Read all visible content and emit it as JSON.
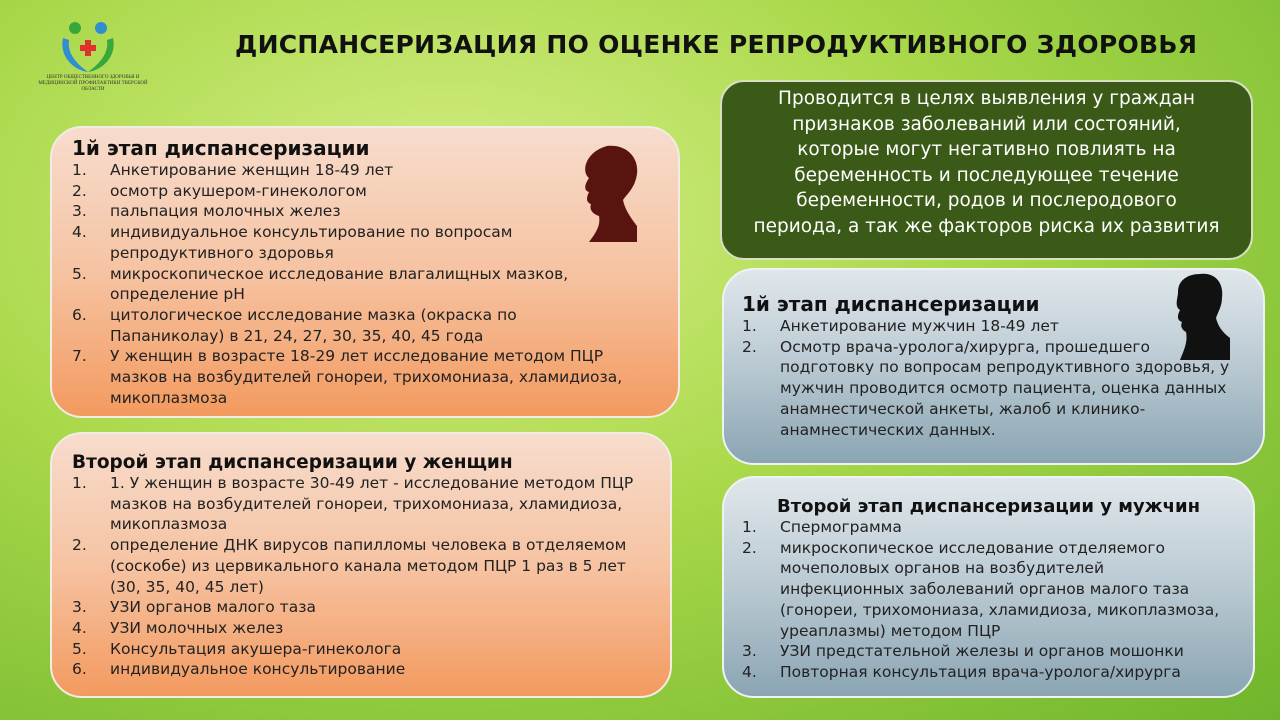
{
  "logo": {
    "caption": "ЦЕНТР ОБЩЕСТВЕННОГО ЗДОРОВЬЯ И МЕДИЦИНСКОЙ ПРОФИЛАКТИКИ ТВЕРСКОЙ ОБЛАСТИ"
  },
  "header": {
    "title": "ДИСПАНСЕРИЗАЦИЯ ПО ОЦЕНКЕ РЕПРОДУКТИВНОГО ЗДОРОВЬЯ"
  },
  "purpose": {
    "text": "Проводится в целях выявления у граждан признаков заболеваний или состояний, которые могут негативно повлиять на беременность и последующее течение беременности, родов и послеродового периода, а так же факторов риска их развития"
  },
  "women_stage1": {
    "title": "1й этап диспансеризации",
    "items": [
      {
        "num": "1.",
        "text": "Анкетирование женщин 18-49 лет"
      },
      {
        "num": "2.",
        "text": "осмотр акушером-гинекологом"
      },
      {
        "num": "3.",
        "text": "пальпация молочных желез"
      },
      {
        "num": "4.",
        "text": "индивидуальное консультирование по вопросам репродуктивного здоровья"
      },
      {
        "num": "5.",
        "text": "микроскопическое исследование влагалищных мазков, определение pH"
      },
      {
        "num": "6.",
        "text": "цитологическое исследование мазка (окраска по Папаниколау) в  21, 24, 27, 30, 35, 40, 45 года"
      },
      {
        "num": "7.",
        "text": "У женщин в возрасте 18-29 лет исследование методом ПЦР мазков на возбудителей гонореи, трихомониаза, хламидиоза, микоплазмоза"
      }
    ]
  },
  "women_stage2": {
    "title": "Второй этап диспансеризации у женщин",
    "items": [
      {
        "num": "1.",
        "text": "1. У женщин  в возрасте  30-49 лет - исследование методом ПЦР мазков на возбудителей гонореи, трихомониаза, хламидиоза, микоплазмоза"
      },
      {
        "num": "2.",
        "text": "определение ДНК вирусов папилломы человека в отделяемом (соскобе) из цервикального канала методом ПЦР 1 раз в 5 лет (30, 35, 40, 45 лет)"
      },
      {
        "num": "3.",
        "text": "УЗИ органов малого таза"
      },
      {
        "num": "4.",
        "text": "УЗИ молочных желез"
      },
      {
        "num": "5.",
        "text": "Консультация акушера-гинеколога"
      },
      {
        "num": "6.",
        "text": "индивидуальное консультирование"
      }
    ]
  },
  "men_stage1": {
    "title": "1й этап диспансеризации",
    "items": [
      {
        "num": "1.",
        "text": "Анкетирование мужчин 18-49 лет"
      },
      {
        "num": "2.",
        "text": "Осмотр врача-уролога/хирурга, прошедшего подготовку по вопросам репродуктивного здоровья, у мужчин проводится осмотр пациента, оценка данных анамнестической анкеты, жалоб и клинико- анамнестических данных."
      }
    ]
  },
  "men_stage2": {
    "title": "Второй этап диспансеризации у мужчин",
    "items": [
      {
        "num": "1.",
        "text": "Спермограмма"
      },
      {
        "num": "2.",
        "text": "микроскопическое исследование отделяемого мочеполовых органов на возбудителей инфекционных заболеваний органов малого таза (гонореи, трихомониаза, хламидиоза, микоплазмоза, уреаплазмы) методом ПЦР"
      },
      {
        "num": "3.",
        "text": "УЗИ предстательной железы и органов мошонки"
      },
      {
        "num": "4.",
        "text": "Повторная консультация врача-уролога/хирурга"
      }
    ]
  }
}
